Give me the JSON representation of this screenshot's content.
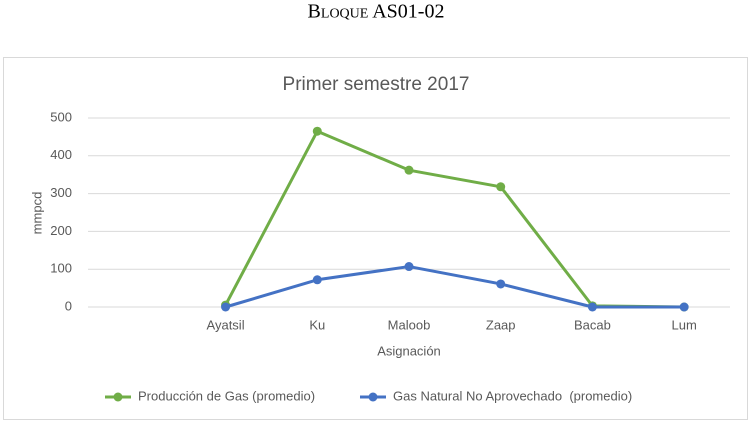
{
  "heading": "Bloque AS01-02",
  "chart_data": {
    "type": "line",
    "title": "Primer semestre 2017",
    "x_label": "Asignación",
    "y_label": "mmpcd",
    "categories": [
      null,
      "Ayatsil",
      "Ku",
      "Maloob",
      "Zaap",
      "Bacab",
      "Lum"
    ],
    "series": [
      {
        "name": "Producción de Gas (promedio)",
        "color": "#70ad47",
        "values": [
          null,
          5,
          465,
          362,
          318,
          3,
          0
        ]
      },
      {
        "name": "Gas Natural No Aprovechado  (promedio)",
        "color": "#4472c4",
        "values": [
          null,
          0,
          72,
          107,
          61,
          0,
          0
        ]
      }
    ],
    "ylim": [
      0,
      500
    ],
    "yticks": [
      0,
      100,
      200,
      300,
      400,
      500
    ],
    "grid": true,
    "legend": "bottom"
  }
}
